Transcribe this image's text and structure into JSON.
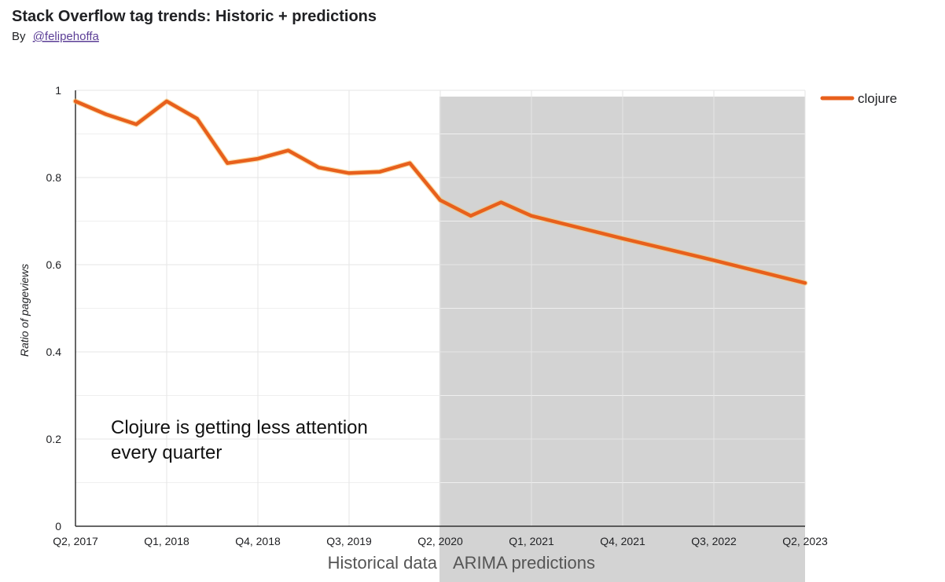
{
  "chart_data": {
    "type": "line",
    "title": "Stack Overflow tag trends: Historic + predictions",
    "byline_prefix": "By",
    "byline_author": "@felipehoffa",
    "ylabel": "Ratio of pageviews",
    "xlabel": "",
    "ylim": [
      0,
      1
    ],
    "y_ticks": [
      "0",
      "0.2",
      "0.4",
      "0.6",
      "0.8",
      "1"
    ],
    "x_ticks": [
      "Q2, 2017",
      "Q1, 2018",
      "Q4, 2018",
      "Q3, 2019",
      "Q2, 2020",
      "Q1, 2021",
      "Q4, 2021",
      "Q3, 2022",
      "Q2, 2023"
    ],
    "x_tick_quarter_index": [
      0,
      3,
      6,
      9,
      12,
      15,
      18,
      21,
      24
    ],
    "quarters_total": 24,
    "series": [
      {
        "name": "clojure",
        "color": "#e8601c",
        "points": [
          [
            0,
            0.975
          ],
          [
            1,
            0.945
          ],
          [
            2,
            0.922
          ],
          [
            3,
            0.975
          ],
          [
            4,
            0.935
          ],
          [
            5,
            0.833
          ],
          [
            6,
            0.843
          ],
          [
            7,
            0.862
          ],
          [
            8,
            0.823
          ],
          [
            9,
            0.81
          ],
          [
            10,
            0.813
          ],
          [
            11,
            0.833
          ],
          [
            12,
            0.748
          ],
          [
            13,
            0.712
          ],
          [
            14,
            0.743
          ],
          [
            15,
            0.712
          ],
          [
            18,
            0.66
          ],
          [
            21,
            0.61
          ],
          [
            24,
            0.558
          ]
        ]
      }
    ],
    "prediction_start_quarter": 12,
    "prediction_region_color": "#d3d3d3",
    "annotation": [
      "Clojure is getting less attention",
      "every quarter"
    ],
    "region_labels": {
      "historical": "Historical data",
      "predictions": "ARIMA predictions"
    },
    "legend_position": "top-right",
    "grid": true
  }
}
